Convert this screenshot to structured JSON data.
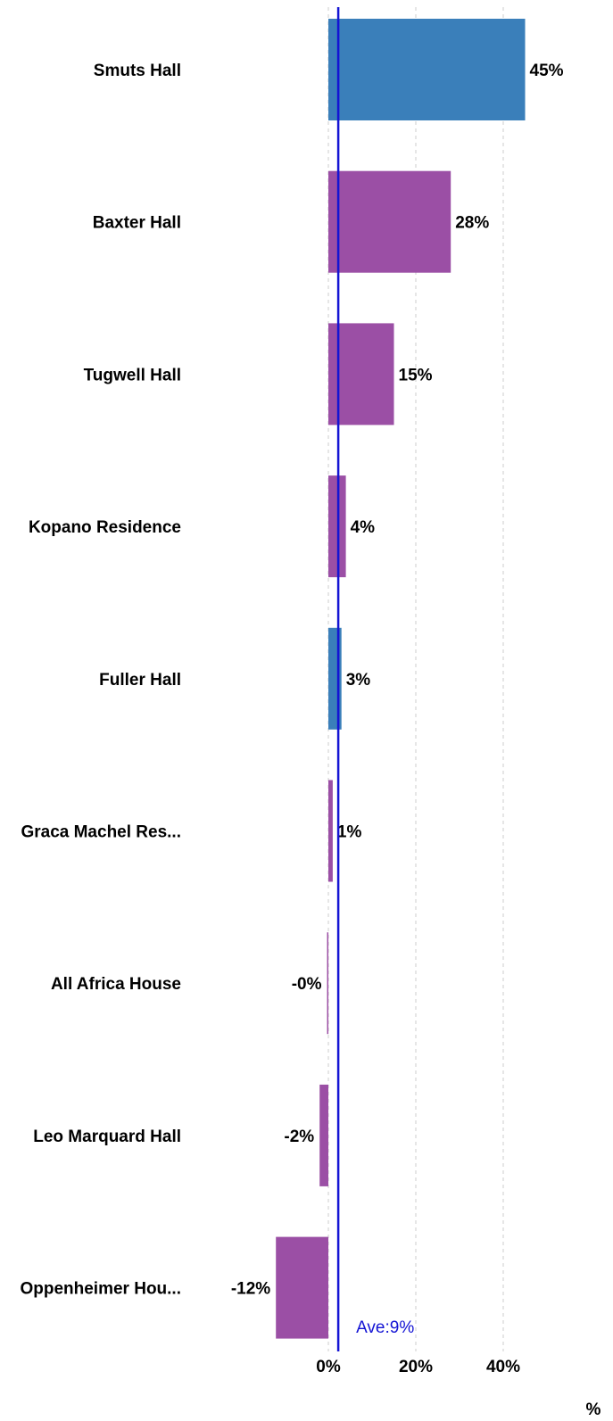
{
  "chart_data": {
    "type": "bar",
    "orientation": "horizontal",
    "categories": [
      "Smuts Hall",
      "Baxter Hall",
      "Tugwell Hall",
      "Kopano Residence",
      "Fuller Hall",
      "Graca Machel Res...",
      "All Africa House",
      "Leo Marquard Hall",
      "Oppenheimer Hou..."
    ],
    "values": [
      45,
      28,
      15,
      4,
      3,
      1,
      -0.3,
      -2,
      -12
    ],
    "value_labels": [
      "45%",
      "28%",
      "15%",
      "4%",
      "3%",
      "1%",
      "-0%",
      "-2%",
      "-12%"
    ],
    "highlighted": [
      true,
      false,
      false,
      false,
      true,
      false,
      false,
      false,
      false
    ],
    "colors": {
      "highlight": "#3a7fba",
      "default": "#9b4fa5",
      "average": "#1414d4",
      "grid": "#cccccc"
    },
    "x_ticks": [
      0,
      20,
      40
    ],
    "x_tick_labels": [
      "0%",
      "20%",
      "40%"
    ],
    "x_unit_label": "%",
    "xlim": [
      -14,
      62
    ],
    "grid": true,
    "average": {
      "value": 9,
      "label": "Ave:9%"
    }
  }
}
